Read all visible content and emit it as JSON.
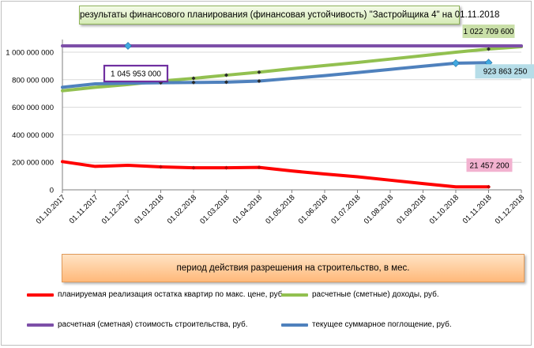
{
  "chart_data": {
    "type": "line",
    "title": "результаты финансового планирования (финансовая устойчивость) \"Застройщика  4\" на 01.11.2018",
    "xlabel": "период  действия разрешения на строительство, в мес.",
    "ylabel": "",
    "categories": [
      "01.10.2017",
      "01.11.2017",
      "01.12.2017",
      "01.01.2018",
      "01.02.2018",
      "01.03.2018",
      "01.04.2018",
      "01.05.2018",
      "01.06.2018",
      "01.07.2018",
      "01.08.2018",
      "01.09.2018",
      "01.10.2018",
      "01.11.2018",
      "01.12.2018"
    ],
    "ylim": [
      0,
      1045953000
    ],
    "yticks": [
      {
        "value": 0,
        "label": "0"
      },
      {
        "value": 200000000,
        "label": "200 000 000"
      },
      {
        "value": 400000000,
        "label": "400 000 000"
      },
      {
        "value": 600000000,
        "label": "600 000 000"
      },
      {
        "value": 800000000,
        "label": "800 000 000"
      },
      {
        "value": 1000000000,
        "label": "1 000 000 000"
      }
    ],
    "grid": "horizontal",
    "legend_position": "bottom",
    "series": [
      {
        "name": "планируемая реализация остатка квартир по макс. цене, руб.",
        "color": "#ff0000",
        "values": [
          205000000,
          170000000,
          178000000,
          167000000,
          160000000,
          160000000,
          163000000,
          137000000,
          115000000,
          95000000,
          70000000,
          45000000,
          21457200,
          21457200,
          null
        ],
        "markers": [
          3,
          4,
          5,
          6,
          13
        ],
        "label": {
          "index": 13,
          "text": "21 457 200",
          "bg": "#f2b2d0"
        }
      },
      {
        "name": "расчетные (сметные) доходы, руб.",
        "color": "#92c050",
        "values": [
          720000000,
          745000000,
          765000000,
          790000000,
          810000000,
          833000000,
          855000000,
          880000000,
          903000000,
          925000000,
          950000000,
          975000000,
          1000000000,
          1022709600,
          1040000000
        ],
        "markers": [
          3,
          4,
          5,
          6,
          13
        ],
        "label": {
          "index": 13,
          "text": "1 022 709 600",
          "bg": "#c9dfa8"
        }
      },
      {
        "name": "расчетная (сметная) стоимость строительства, руб.",
        "color": "#7d4fa8",
        "values": [
          1045953000,
          1045953000,
          1045953000,
          1045953000,
          1045953000,
          1045953000,
          1045953000,
          1045953000,
          1045953000,
          1045953000,
          1045953000,
          1045953000,
          1045953000,
          1045953000,
          1045953000
        ],
        "markers": [
          2
        ],
        "label": {
          "index": 2,
          "text": "1 045 953 000",
          "bg": "#ffffff"
        }
      },
      {
        "name": "текущее суммарное поглощение, руб.",
        "color": "#4f81bd",
        "values": [
          745000000,
          770000000,
          775000000,
          778000000,
          780000000,
          782000000,
          790000000,
          810000000,
          830000000,
          852000000,
          875000000,
          898000000,
          920000000,
          923863250,
          null
        ],
        "markers": [
          3,
          4,
          5,
          6,
          12,
          13
        ],
        "label": {
          "index": 13,
          "text": "923 863 250",
          "bg": "#b6dde8"
        }
      }
    ]
  }
}
